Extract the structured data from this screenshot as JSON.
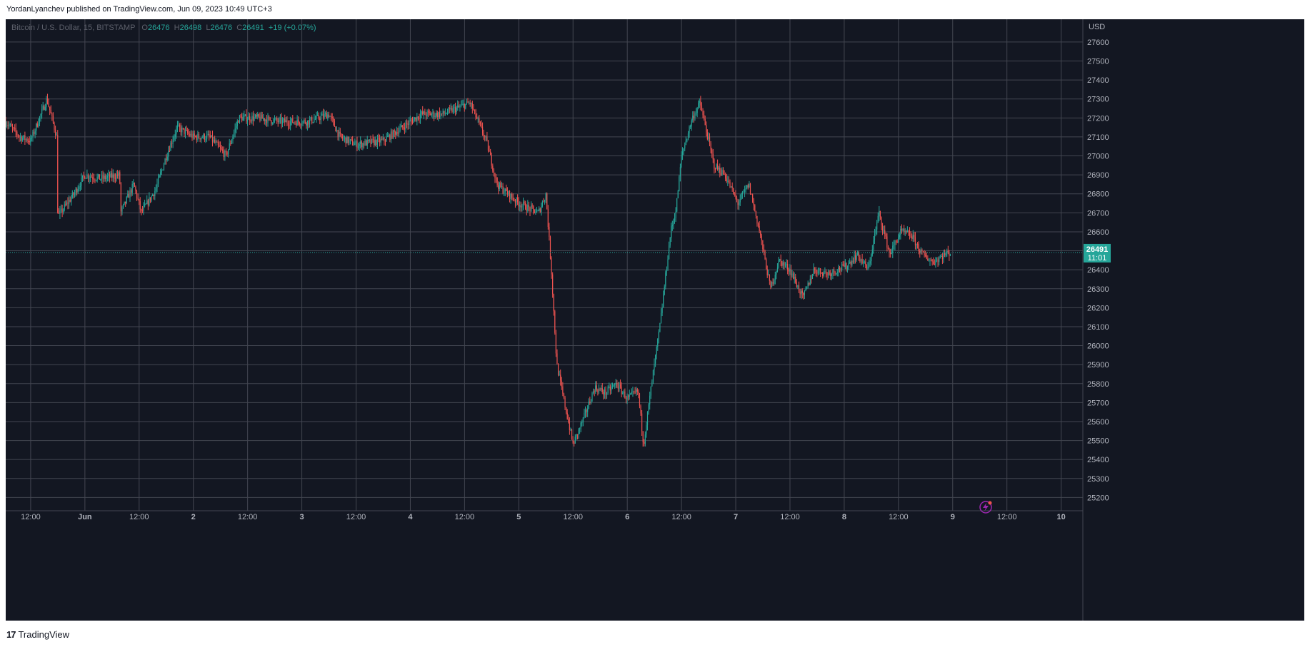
{
  "header": {
    "publish_line": "YordanLyanchev published on TradingView.com, Jun 09, 2023 10:49 UTC+3"
  },
  "footer": {
    "brand": "TradingView"
  },
  "legend": {
    "symbol": "Bitcoin / U.S. Dollar, 15, BITSTAMP",
    "o_label": "O",
    "o_value": "26476",
    "h_label": "H",
    "h_value": "26498",
    "l_label": "L",
    "l_value": "26476",
    "c_label": "C",
    "c_value": "26491",
    "change": "+19 (+0.07%)"
  },
  "price_label": {
    "price": "26491",
    "countdown": "11:01"
  },
  "colors": {
    "background": "#131722",
    "grid": "#434651",
    "up": "#26a69a",
    "down": "#ef5350",
    "text": "#b2b5be"
  },
  "chart_data": {
    "type": "candlestick",
    "title": "Bitcoin / U.S. Dollar, 15, BITSTAMP",
    "y_axis": {
      "currency": "USD",
      "ticks": [
        25200,
        25300,
        25400,
        25500,
        25600,
        25700,
        25800,
        25900,
        26000,
        26100,
        26200,
        26300,
        26400,
        26500,
        26600,
        26700,
        26800,
        26900,
        27000,
        27100,
        27200,
        27300,
        27400,
        27500,
        27600
      ],
      "range": [
        25130,
        27720
      ]
    },
    "x_axis": {
      "tick_labels": [
        "12:00",
        "Jun",
        "12:00",
        "2",
        "12:00",
        "3",
        "12:00",
        "4",
        "12:00",
        "5",
        "12:00",
        "6",
        "12:00",
        "7",
        "12:00",
        "8",
        "12:00",
        "9",
        "12:00",
        "10"
      ],
      "range_days": [
        0.77,
        10.7
      ]
    },
    "grid": true,
    "last_price": 26491,
    "price_path": [
      [
        0.77,
        27180
      ],
      [
        0.9,
        27100
      ],
      [
        1.0,
        27080
      ],
      [
        1.15,
        27300
      ],
      [
        1.24,
        27100
      ],
      [
        1.25,
        26680
      ],
      [
        1.4,
        26800
      ],
      [
        1.5,
        26900
      ],
      [
        1.65,
        26880
      ],
      [
        1.82,
        26900
      ],
      [
        1.83,
        26700
      ],
      [
        1.95,
        26850
      ],
      [
        2.02,
        26700
      ],
      [
        2.15,
        26820
      ],
      [
        2.25,
        27000
      ],
      [
        2.35,
        27150
      ],
      [
        2.5,
        27100
      ],
      [
        2.65,
        27100
      ],
      [
        2.8,
        27000
      ],
      [
        2.92,
        27200
      ],
      [
        3.1,
        27200
      ],
      [
        3.3,
        27180
      ],
      [
        3.55,
        27180
      ],
      [
        3.75,
        27220
      ],
      [
        3.85,
        27100
      ],
      [
        4.0,
        27060
      ],
      [
        4.25,
        27080
      ],
      [
        4.45,
        27160
      ],
      [
        4.6,
        27220
      ],
      [
        4.8,
        27220
      ],
      [
        5.05,
        27280
      ],
      [
        5.2,
        27080
      ],
      [
        5.3,
        26850
      ],
      [
        5.5,
        26750
      ],
      [
        5.68,
        26700
      ],
      [
        5.75,
        26800
      ],
      [
        5.8,
        26400
      ],
      [
        5.85,
        25900
      ],
      [
        5.92,
        25700
      ],
      [
        6.0,
        25480
      ],
      [
        6.1,
        25620
      ],
      [
        6.2,
        25780
      ],
      [
        6.3,
        25750
      ],
      [
        6.4,
        25800
      ],
      [
        6.5,
        25720
      ],
      [
        6.6,
        25760
      ],
      [
        6.65,
        25480
      ],
      [
        6.72,
        25780
      ],
      [
        6.8,
        26100
      ],
      [
        6.9,
        26600
      ],
      [
        6.95,
        26720
      ],
      [
        7.0,
        27000
      ],
      [
        7.1,
        27200
      ],
      [
        7.17,
        27280
      ],
      [
        7.3,
        26950
      ],
      [
        7.4,
        26900
      ],
      [
        7.52,
        26750
      ],
      [
        7.62,
        26850
      ],
      [
        7.72,
        26600
      ],
      [
        7.82,
        26300
      ],
      [
        7.9,
        26450
      ],
      [
        8.0,
        26400
      ],
      [
        8.12,
        26250
      ],
      [
        8.22,
        26400
      ],
      [
        8.35,
        26380
      ],
      [
        8.52,
        26420
      ],
      [
        8.62,
        26480
      ],
      [
        8.72,
        26400
      ],
      [
        8.82,
        26700
      ],
      [
        8.92,
        26480
      ],
      [
        9.02,
        26600
      ],
      [
        9.12,
        26580
      ],
      [
        9.22,
        26480
      ],
      [
        9.32,
        26440
      ],
      [
        9.42,
        26480
      ],
      [
        9.48,
        26491
      ]
    ]
  }
}
